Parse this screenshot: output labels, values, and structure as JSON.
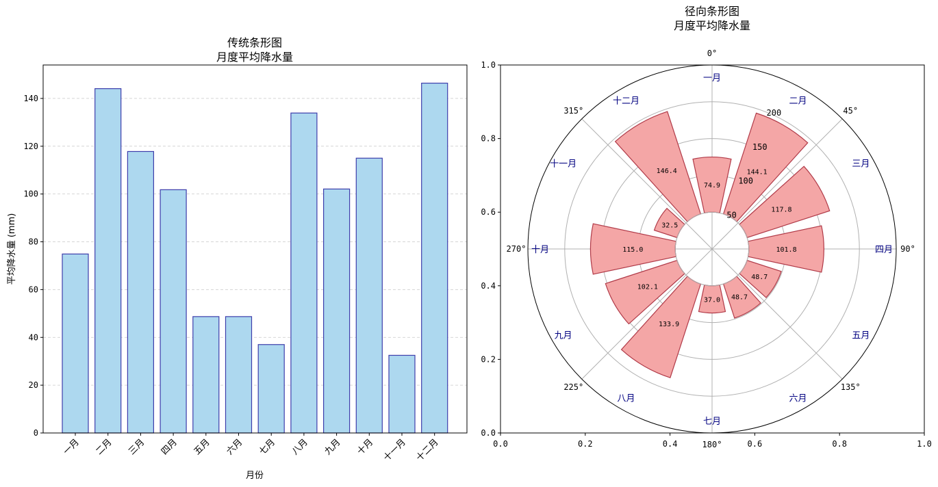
{
  "chart_data": [
    {
      "type": "bar",
      "title": "传统条形图\n月度平均降水量",
      "xlabel": "月份",
      "ylabel": "平均降水量 (mm)",
      "ylim": [
        0,
        154
      ],
      "yticks": [
        0,
        20,
        40,
        60,
        80,
        100,
        120,
        140
      ],
      "grid": "y-dashed",
      "categories": [
        "一月",
        "二月",
        "三月",
        "四月",
        "五月",
        "六月",
        "七月",
        "八月",
        "九月",
        "十月",
        "十一月",
        "十二月"
      ],
      "values": [
        74.9,
        144.1,
        117.8,
        101.8,
        48.7,
        48.7,
        37.0,
        133.9,
        102.1,
        115.0,
        32.5,
        146.4
      ],
      "colors": {
        "fill": "#add8ef",
        "edge": "#3d3dab"
      }
    },
    {
      "type": "bar",
      "subtype": "radial",
      "title": "径向条形图\n月度平均降水量",
      "categories": [
        "一月",
        "二月",
        "三月",
        "四月",
        "五月",
        "六月",
        "七月",
        "八月",
        "九月",
        "十月",
        "十一月",
        "十二月"
      ],
      "values": [
        74.9,
        144.1,
        117.8,
        101.8,
        48.7,
        48.7,
        37.0,
        133.9,
        102.1,
        115.0,
        32.5,
        146.4
      ],
      "value_labels": [
        "74.9",
        "144.1",
        "117.8",
        "101.8",
        "48.7",
        "48.7",
        "37.0",
        "133.9",
        "102.1",
        "115.0",
        "32.5",
        "146.4"
      ],
      "rticks": [
        50,
        100,
        150,
        200
      ],
      "rmax": 250,
      "inner_radius": 50,
      "angle_ticks": [
        "0°",
        "45°",
        "90°",
        "135°",
        "180°",
        "225°",
        "270°",
        "315°"
      ],
      "frame_xticks": [
        "0.0",
        "0.2",
        "0.4",
        "0.6",
        "0.8",
        "1.0"
      ],
      "frame_yticks": [
        "0.0",
        "0.2",
        "0.4",
        "0.6",
        "0.8",
        "1.0"
      ],
      "colors": {
        "fill": "#f4a6a6",
        "edge": "#b03a48",
        "label": "#000080"
      }
    }
  ]
}
